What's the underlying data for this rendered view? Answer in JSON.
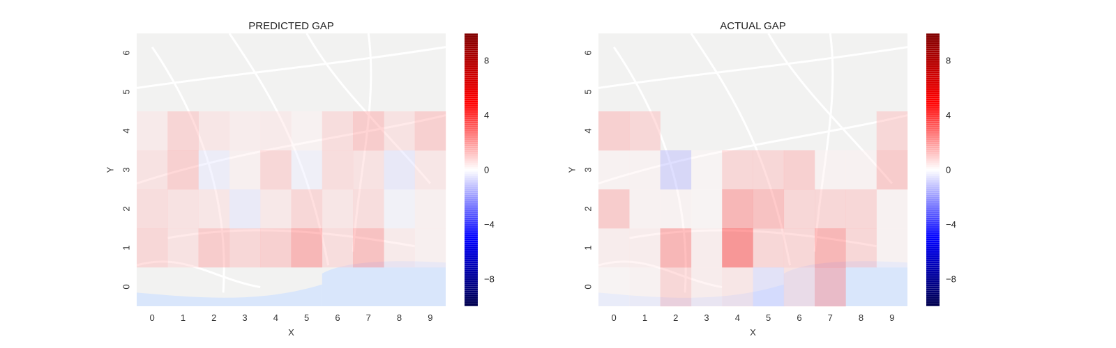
{
  "figure": {
    "background": "#ffffff",
    "map_base_color": "#f2f2f1",
    "map_water_color": "#d9e6fb",
    "map_road_color": "#ffffff",
    "map_label_color": "#b9b0a6"
  },
  "chart_data": [
    {
      "type": "heatmap",
      "title": "PREDICTED GAP",
      "xlabel": "X",
      "ylabel": "Y",
      "x_ticks": [
        "0",
        "1",
        "2",
        "3",
        "4",
        "5",
        "6",
        "7",
        "8",
        "9"
      ],
      "y_ticks": [
        "0",
        "1",
        "2",
        "3",
        "4",
        "5",
        "6"
      ],
      "colormap": "seismic",
      "vmin": -10,
      "vmax": 10,
      "colorbar_ticks": [
        "8",
        "4",
        "0",
        "−4",
        "−8"
      ],
      "colorbar_tick_values": [
        8,
        4,
        0,
        -4,
        -8
      ],
      "grid": false,
      "cells": [
        {
          "x": 0,
          "y": 1,
          "value": 1.5
        },
        {
          "x": 1,
          "y": 1,
          "value": 1.0
        },
        {
          "x": 2,
          "y": 1,
          "value": 2.0
        },
        {
          "x": 3,
          "y": 1,
          "value": 1.5
        },
        {
          "x": 4,
          "y": 1,
          "value": 1.8
        },
        {
          "x": 5,
          "y": 1,
          "value": 3.0
        },
        {
          "x": 6,
          "y": 1,
          "value": 1.2
        },
        {
          "x": 7,
          "y": 1,
          "value": 2.5
        },
        {
          "x": 8,
          "y": 1,
          "value": 0.6
        },
        {
          "x": 9,
          "y": 1,
          "value": 0.4
        },
        {
          "x": 0,
          "y": 2,
          "value": 1.2
        },
        {
          "x": 1,
          "y": 2,
          "value": 1.0
        },
        {
          "x": 2,
          "y": 2,
          "value": 0.8
        },
        {
          "x": 3,
          "y": 2,
          "value": -0.6
        },
        {
          "x": 4,
          "y": 2,
          "value": 0.7
        },
        {
          "x": 5,
          "y": 2,
          "value": 1.5
        },
        {
          "x": 6,
          "y": 2,
          "value": 0.8
        },
        {
          "x": 7,
          "y": 2,
          "value": 1.2
        },
        {
          "x": 8,
          "y": 2,
          "value": -0.3
        },
        {
          "x": 9,
          "y": 2,
          "value": 0.4
        },
        {
          "x": 0,
          "y": 3,
          "value": 1.0
        },
        {
          "x": 1,
          "y": 3,
          "value": 1.8
        },
        {
          "x": 2,
          "y": 3,
          "value": -0.5
        },
        {
          "x": 3,
          "y": 3,
          "value": 0.4
        },
        {
          "x": 4,
          "y": 3,
          "value": 1.5
        },
        {
          "x": 5,
          "y": 3,
          "value": -0.4
        },
        {
          "x": 6,
          "y": 3,
          "value": 1.2
        },
        {
          "x": 7,
          "y": 3,
          "value": 1.0
        },
        {
          "x": 8,
          "y": 3,
          "value": -0.7
        },
        {
          "x": 9,
          "y": 3,
          "value": 0.8
        },
        {
          "x": 0,
          "y": 4,
          "value": 0.6
        },
        {
          "x": 1,
          "y": 4,
          "value": 1.6
        },
        {
          "x": 2,
          "y": 4,
          "value": 0.8
        },
        {
          "x": 3,
          "y": 4,
          "value": 0.5
        },
        {
          "x": 4,
          "y": 4,
          "value": 0.6
        },
        {
          "x": 5,
          "y": 4,
          "value": 0.3
        },
        {
          "x": 6,
          "y": 4,
          "value": 1.2
        },
        {
          "x": 7,
          "y": 4,
          "value": 2.0
        },
        {
          "x": 8,
          "y": 4,
          "value": 1.0
        },
        {
          "x": 9,
          "y": 4,
          "value": 1.8
        }
      ]
    },
    {
      "type": "heatmap",
      "title": "ACTUAL GAP",
      "xlabel": "X",
      "ylabel": "Y",
      "x_ticks": [
        "0",
        "1",
        "2",
        "3",
        "4",
        "5",
        "6",
        "7",
        "8",
        "9"
      ],
      "y_ticks": [
        "0",
        "1",
        "2",
        "3",
        "4",
        "5",
        "6"
      ],
      "colormap": "seismic",
      "vmin": -10,
      "vmax": 10,
      "colorbar_ticks": [
        "8",
        "4",
        "0",
        "−4",
        "−8"
      ],
      "colorbar_tick_values": [
        8,
        4,
        0,
        -4,
        -8
      ],
      "grid": false,
      "cells": [
        {
          "x": 0,
          "y": 0,
          "value": 0.2
        },
        {
          "x": 1,
          "y": 0,
          "value": 0.3
        },
        {
          "x": 2,
          "y": 0,
          "value": 1.5
        },
        {
          "x": 3,
          "y": 0,
          "value": 0.5
        },
        {
          "x": 4,
          "y": 0,
          "value": 0.8
        },
        {
          "x": 5,
          "y": 0,
          "value": -1.0
        },
        {
          "x": 6,
          "y": 0,
          "value": 1.0
        },
        {
          "x": 7,
          "y": 0,
          "value": 2.5
        },
        {
          "x": 0,
          "y": 1,
          "value": 0.5
        },
        {
          "x": 1,
          "y": 1,
          "value": 0.5
        },
        {
          "x": 2,
          "y": 1,
          "value": 3.0
        },
        {
          "x": 3,
          "y": 1,
          "value": 0.5
        },
        {
          "x": 4,
          "y": 1,
          "value": 4.5
        },
        {
          "x": 5,
          "y": 1,
          "value": 1.5
        },
        {
          "x": 6,
          "y": 1,
          "value": 1.5
        },
        {
          "x": 7,
          "y": 1,
          "value": 3.0
        },
        {
          "x": 8,
          "y": 1,
          "value": 1.5
        },
        {
          "x": 9,
          "y": 1,
          "value": 0.3
        },
        {
          "x": 0,
          "y": 2,
          "value": 2.0
        },
        {
          "x": 1,
          "y": 2,
          "value": 0.3
        },
        {
          "x": 2,
          "y": 2,
          "value": 0.3
        },
        {
          "x": 3,
          "y": 2,
          "value": 0.2
        },
        {
          "x": 4,
          "y": 2,
          "value": 3.0
        },
        {
          "x": 5,
          "y": 2,
          "value": 2.5
        },
        {
          "x": 6,
          "y": 2,
          "value": 1.5
        },
        {
          "x": 7,
          "y": 2,
          "value": 1.5
        },
        {
          "x": 8,
          "y": 2,
          "value": 1.5
        },
        {
          "x": 9,
          "y": 2,
          "value": 0.3
        },
        {
          "x": 0,
          "y": 3,
          "value": 0.3
        },
        {
          "x": 1,
          "y": 3,
          "value": 0.3
        },
        {
          "x": 2,
          "y": 3,
          "value": -1.5
        },
        {
          "x": 3,
          "y": 3,
          "value": 0.2
        },
        {
          "x": 4,
          "y": 3,
          "value": 1.5
        },
        {
          "x": 5,
          "y": 3,
          "value": 1.5
        },
        {
          "x": 6,
          "y": 3,
          "value": 1.8
        },
        {
          "x": 7,
          "y": 3,
          "value": 0.3
        },
        {
          "x": 8,
          "y": 3,
          "value": 0.3
        },
        {
          "x": 9,
          "y": 3,
          "value": 2.0
        },
        {
          "x": 0,
          "y": 4,
          "value": 1.8
        },
        {
          "x": 1,
          "y": 4,
          "value": 1.5
        },
        {
          "x": 9,
          "y": 4,
          "value": 1.5
        }
      ]
    }
  ]
}
